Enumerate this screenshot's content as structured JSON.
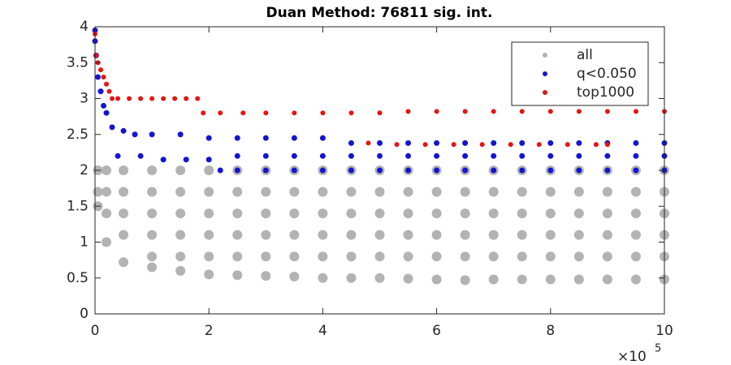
{
  "chart_data": {
    "type": "scatter",
    "title": "Duan Method: 76811 sig. int.",
    "x_multiplier": "×10",
    "x_exponent": "5",
    "xlim": [
      0,
      10
    ],
    "xticks": [
      0,
      2,
      4,
      6,
      8,
      10
    ],
    "ylim": [
      0,
      4
    ],
    "yticks": [
      0,
      0.5,
      1,
      1.5,
      2,
      2.5,
      3,
      3.5,
      4
    ],
    "legend": "upper right",
    "series": [
      {
        "name": "all",
        "color": "#b3b3b3",
        "x": [
          0.05,
          0.05,
          0.05,
          0.2,
          0.2,
          0.2,
          0.2,
          0.5,
          0.5,
          0.5,
          0.5,
          0.5,
          1,
          1,
          1,
          1,
          1,
          1,
          1.5,
          1.5,
          1.5,
          1.5,
          1.5,
          1.5,
          2,
          2,
          2,
          2,
          2,
          2,
          2.5,
          2.5,
          2.5,
          2.5,
          2.5,
          2.5,
          3,
          3,
          3,
          3,
          3,
          3,
          3.5,
          3.5,
          3.5,
          3.5,
          3.5,
          3.5,
          4,
          4,
          4,
          4,
          4,
          4,
          4.5,
          4.5,
          4.5,
          4.5,
          4.5,
          4.5,
          5,
          5,
          5,
          5,
          5,
          5,
          5.5,
          5.5,
          5.5,
          5.5,
          5.5,
          5.5,
          6,
          6,
          6,
          6,
          6,
          6,
          6.5,
          6.5,
          6.5,
          6.5,
          6.5,
          6.5,
          7,
          7,
          7,
          7,
          7,
          7,
          7.5,
          7.5,
          7.5,
          7.5,
          7.5,
          7.5,
          8,
          8,
          8,
          8,
          8,
          8,
          8.5,
          8.5,
          8.5,
          8.5,
          8.5,
          8.5,
          9,
          9,
          9,
          9,
          9,
          9,
          9.5,
          9.5,
          9.5,
          9.5,
          9.5,
          9.5,
          10,
          10,
          10,
          10,
          10,
          10
        ],
        "values": [
          1.5,
          1.7,
          2.0,
          1.0,
          1.4,
          1.7,
          2.0,
          0.72,
          1.1,
          1.4,
          1.7,
          2.0,
          0.65,
          0.8,
          1.1,
          1.4,
          1.7,
          2.0,
          0.6,
          0.8,
          1.1,
          1.4,
          1.7,
          2.0,
          0.55,
          0.8,
          1.1,
          1.4,
          1.7,
          2.0,
          0.54,
          0.8,
          1.1,
          1.4,
          1.7,
          2.0,
          0.53,
          0.8,
          1.1,
          1.4,
          1.7,
          2.0,
          0.52,
          0.8,
          1.1,
          1.4,
          1.7,
          2.0,
          0.5,
          0.8,
          1.1,
          1.4,
          1.7,
          2.0,
          0.5,
          0.8,
          1.1,
          1.4,
          1.7,
          2.0,
          0.5,
          0.8,
          1.1,
          1.4,
          1.7,
          2.0,
          0.49,
          0.8,
          1.1,
          1.4,
          1.7,
          2.0,
          0.48,
          0.8,
          1.1,
          1.4,
          1.7,
          2.0,
          0.47,
          0.8,
          1.1,
          1.4,
          1.7,
          2.0,
          0.48,
          0.8,
          1.1,
          1.4,
          1.7,
          2.0,
          0.48,
          0.8,
          1.1,
          1.4,
          1.7,
          2.0,
          0.48,
          0.8,
          1.1,
          1.4,
          1.7,
          2.0,
          0.48,
          0.8,
          1.1,
          1.4,
          1.7,
          2.0,
          0.48,
          0.8,
          1.1,
          1.4,
          1.7,
          2.0,
          0.48,
          0.8,
          1.1,
          1.4,
          1.7,
          2.0,
          0.48,
          0.8,
          1.1,
          1.4,
          1.7,
          2.0
        ]
      },
      {
        "name": "q<0.050",
        "color": "#1414d2",
        "x": [
          0,
          0,
          0.02,
          0.05,
          0.1,
          0.15,
          0.2,
          0.3,
          0.5,
          0.7,
          1,
          1.5,
          2,
          0.4,
          0.8,
          1.2,
          1.6,
          2.0,
          2.2,
          2.5,
          2.5,
          2.5,
          3,
          3,
          3,
          3.5,
          3.5,
          3.5,
          4,
          4,
          4,
          4.5,
          4.5,
          4.5,
          5,
          5,
          5,
          5.5,
          5.5,
          5.5,
          6,
          6,
          6,
          6.5,
          6.5,
          6.5,
          7,
          7,
          7,
          7.5,
          7.5,
          7.5,
          8,
          8,
          8,
          8.5,
          8.5,
          8.5,
          9,
          9,
          9,
          9.5,
          9.5,
          9.5,
          10,
          10,
          10
        ],
        "values": [
          3.95,
          3.8,
          3.6,
          3.3,
          3.1,
          2.9,
          2.8,
          2.6,
          2.55,
          2.5,
          2.5,
          2.5,
          2.45,
          2.2,
          2.2,
          2.15,
          2.15,
          2.15,
          2.0,
          2.0,
          2.2,
          2.45,
          2.0,
          2.2,
          2.45,
          2.0,
          2.2,
          2.45,
          2.0,
          2.2,
          2.45,
          2.0,
          2.2,
          2.38,
          2.0,
          2.2,
          2.38,
          2.0,
          2.2,
          2.38,
          2.0,
          2.2,
          2.38,
          2.0,
          2.2,
          2.38,
          2.0,
          2.2,
          2.38,
          2.0,
          2.2,
          2.38,
          2.0,
          2.2,
          2.38,
          2.0,
          2.2,
          2.38,
          2.0,
          2.2,
          2.38,
          2.0,
          2.2,
          2.38,
          2.0,
          2.2,
          2.38
        ]
      },
      {
        "name": "top1000",
        "color": "#e61414",
        "x": [
          0,
          0.02,
          0.05,
          0.1,
          0.15,
          0.2,
          0.25,
          0.3,
          0.4,
          0.6,
          0.8,
          1.0,
          1.2,
          1.4,
          1.6,
          1.8,
          1.9,
          2.2,
          2.6,
          3,
          3.5,
          4,
          4.5,
          5,
          5.5,
          6,
          6.5,
          7,
          7.5,
          8,
          8.5,
          9,
          9.5,
          10,
          4.8,
          5.3,
          5.8,
          6.3,
          6.8,
          7.3,
          7.8,
          8.3,
          8.8,
          9
        ],
        "values": [
          3.9,
          3.6,
          3.5,
          3.4,
          3.3,
          3.2,
          3.1,
          3.0,
          3.0,
          3.0,
          3.0,
          3.0,
          3.0,
          3.0,
          3.0,
          3.0,
          2.8,
          2.8,
          2.8,
          2.8,
          2.8,
          2.8,
          2.8,
          2.8,
          2.82,
          2.82,
          2.82,
          2.82,
          2.82,
          2.82,
          2.82,
          2.82,
          2.82,
          2.82,
          2.38,
          2.36,
          2.36,
          2.36,
          2.36,
          2.36,
          2.36,
          2.36,
          2.36,
          2.36
        ]
      }
    ]
  }
}
